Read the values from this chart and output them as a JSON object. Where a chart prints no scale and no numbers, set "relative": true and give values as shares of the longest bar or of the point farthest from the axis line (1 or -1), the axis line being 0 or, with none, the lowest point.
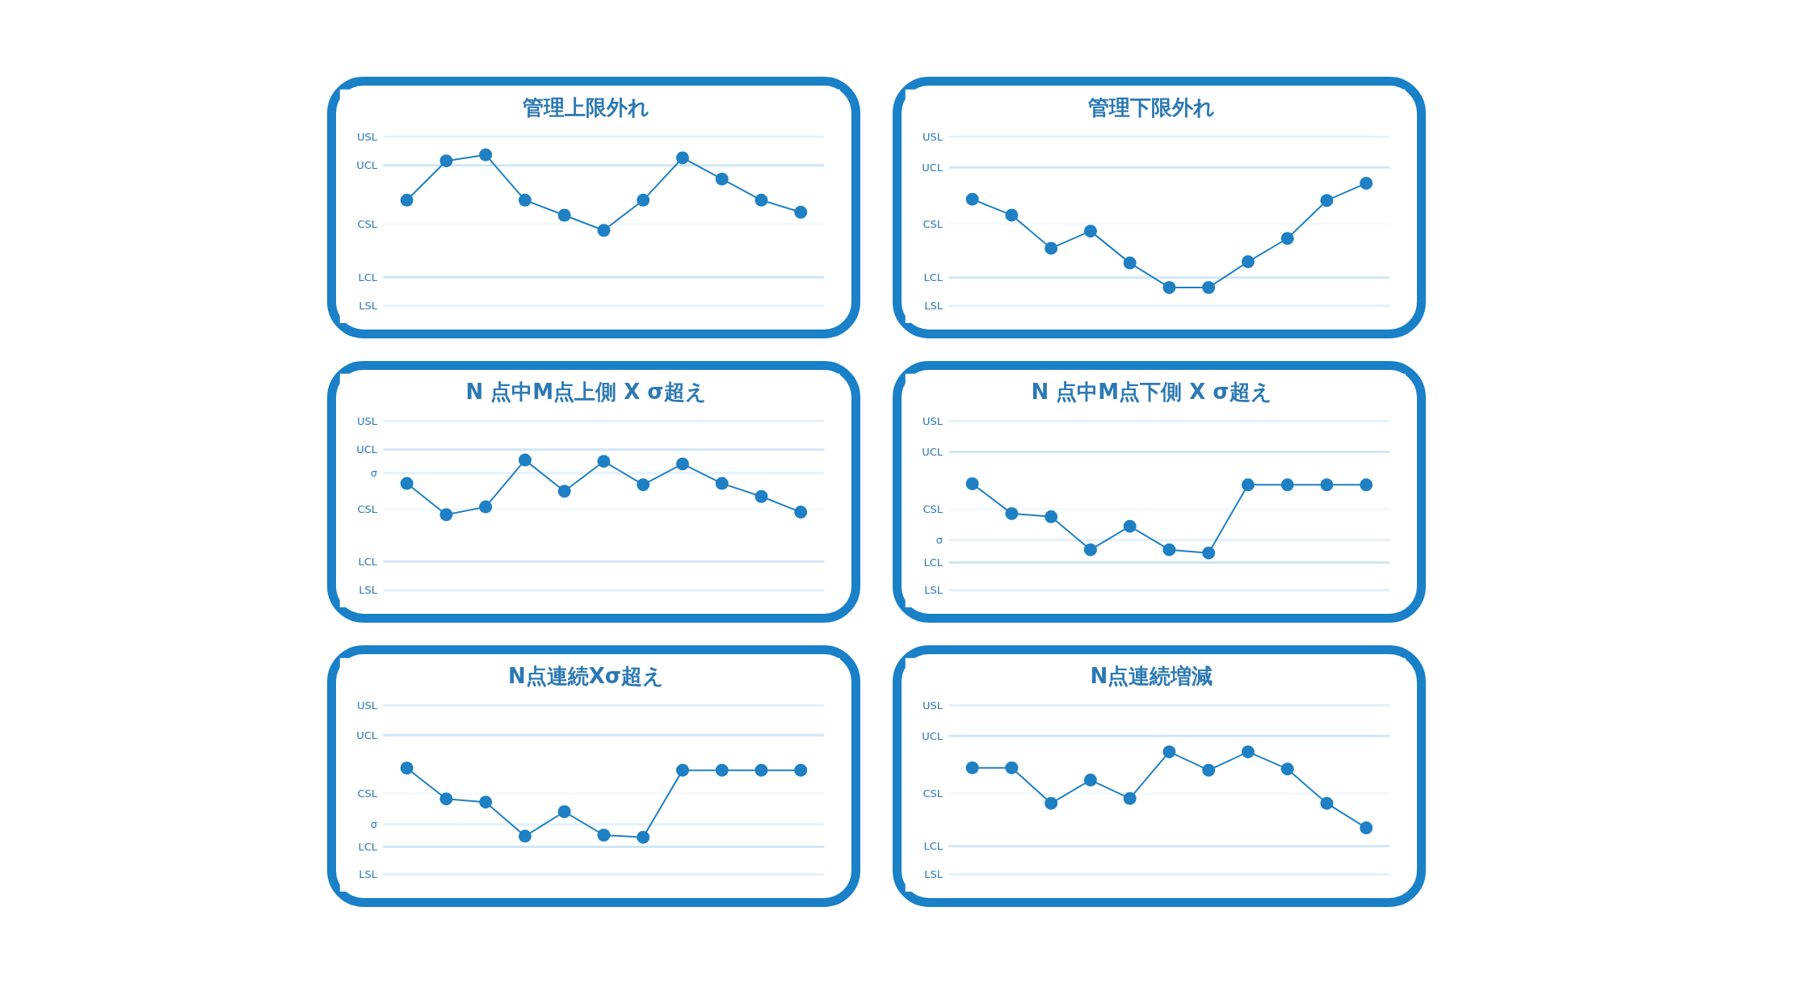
{
  "chart_data": [
    {
      "type": "line",
      "title": "管理上限外れ",
      "relative": true,
      "marker": "circle",
      "categories": [
        null,
        null,
        null,
        null,
        null,
        null,
        null,
        null,
        null,
        null,
        null
      ],
      "series": [
        {
          "color": "#1f80c3",
          "values": [
            0.7,
            0.96,
            1,
            0.7,
            0.6,
            0.5,
            0.7,
            0.98,
            0.84,
            0.7,
            0.62
          ]
        }
      ],
      "ref_lines": [
        {
          "axis": "y",
          "value": 1.12,
          "label": "USL",
          "color": "#e3f1fa"
        },
        {
          "axis": "y",
          "value": 0.93,
          "label": "UCL",
          "color": "#cfe6f5"
        },
        {
          "axis": "y",
          "value": 0.54,
          "label": "CSL",
          "color": "#f4f9fd"
        },
        {
          "axis": "y",
          "value": 0.19,
          "label": "LCL",
          "color": "#cfe6f5"
        },
        {
          "axis": "y",
          "value": 0,
          "label": "LSL",
          "color": "#e3f1fa"
        }
      ]
    },
    {
      "type": "line",
      "title": "管理下限外れ",
      "relative": true,
      "marker": "circle",
      "categories": [
        null,
        null,
        null,
        null,
        null,
        null,
        null,
        null,
        null,
        null,
        null
      ],
      "series": [
        {
          "color": "#1f80c3",
          "values": [
            0.87,
            0.74,
            0.47,
            0.61,
            0.35,
            0.15,
            0.15,
            0.36,
            0.55,
            0.86,
            1
          ]
        }
      ],
      "ref_lines": [
        {
          "axis": "y",
          "value": 1.38,
          "label": "USL",
          "color": "#e3f1fa"
        },
        {
          "axis": "y",
          "value": 1.13,
          "label": "UCL",
          "color": "#cfe6f5"
        },
        {
          "axis": "y",
          "value": 0.67,
          "label": "CSL",
          "color": "#f4f9fd"
        },
        {
          "axis": "y",
          "value": 0.23,
          "label": "LCL",
          "color": "#cfe6f5"
        },
        {
          "axis": "y",
          "value": 0,
          "label": "LSL",
          "color": "#e3f1fa"
        }
      ]
    },
    {
      "type": "line",
      "title": "N 点中M点上側 X σ超え",
      "relative": true,
      "marker": "circle",
      "categories": [
        null,
        null,
        null,
        null,
        null,
        null,
        null,
        null,
        null,
        null,
        null
      ],
      "series": [
        {
          "color": "#1f80c3",
          "values": [
            0.82,
            0.58,
            0.64,
            1,
            0.76,
            0.99,
            0.81,
            0.97,
            0.82,
            0.72,
            0.6
          ]
        }
      ],
      "ref_lines": [
        {
          "axis": "y",
          "value": 1.3,
          "label": "USL",
          "color": "#e3f1fa"
        },
        {
          "axis": "y",
          "value": 1.08,
          "label": "UCL",
          "color": "#cfe6f5"
        },
        {
          "axis": "y",
          "value": 0.9,
          "label": "σ",
          "color": "#e3f1fa"
        },
        {
          "axis": "y",
          "value": 0.62,
          "label": "CSL",
          "color": "#f4f9fd"
        },
        {
          "axis": "y",
          "value": 0.22,
          "label": "LCL",
          "color": "#cfe6f5"
        },
        {
          "axis": "y",
          "value": 0,
          "label": "LSL",
          "color": "#e3f1fa"
        }
      ]
    },
    {
      "type": "line",
      "title": "N 点中M点下側 X σ超え",
      "relative": true,
      "marker": "circle",
      "categories": [
        null,
        null,
        null,
        null,
        null,
        null,
        null,
        null,
        null,
        null,
        null
      ],
      "series": [
        {
          "color": "#1f80c3",
          "values": [
            1,
            0.72,
            0.69,
            0.38,
            0.6,
            0.38,
            0.35,
            0.99,
            0.99,
            0.99,
            0.99
          ]
        }
      ],
      "ref_lines": [
        {
          "axis": "y",
          "value": 1.59,
          "label": "USL",
          "color": "#e3f1fa"
        },
        {
          "axis": "y",
          "value": 1.3,
          "label": "UCL",
          "color": "#cfe6f5"
        },
        {
          "axis": "y",
          "value": 0.76,
          "label": "CSL",
          "color": "#f4f9fd"
        },
        {
          "axis": "y",
          "value": 0.47,
          "label": "σ",
          "color": "#e3f1fa"
        },
        {
          "axis": "y",
          "value": 0.26,
          "label": "LCL",
          "color": "#cfe6f5"
        },
        {
          "axis": "y",
          "value": 0,
          "label": "LSL",
          "color": "#e3f1fa"
        }
      ]
    },
    {
      "type": "line",
      "title": "N点連続Xσ超え",
      "relative": true,
      "marker": "circle",
      "categories": [
        null,
        null,
        null,
        null,
        null,
        null,
        null,
        null,
        null,
        null,
        null
      ],
      "series": [
        {
          "color": "#1f80c3",
          "values": [
            1,
            0.71,
            0.68,
            0.36,
            0.59,
            0.37,
            0.35,
            0.98,
            0.98,
            0.98,
            0.98
          ]
        }
      ],
      "ref_lines": [
        {
          "axis": "y",
          "value": 1.59,
          "label": "USL",
          "color": "#e3f1fa"
        },
        {
          "axis": "y",
          "value": 1.31,
          "label": "UCL",
          "color": "#cfe6f5"
        },
        {
          "axis": "y",
          "value": 0.76,
          "label": "CSL",
          "color": "#f4f9fd"
        },
        {
          "axis": "y",
          "value": 0.47,
          "label": "σ",
          "color": "#e3f1fa"
        },
        {
          "axis": "y",
          "value": 0.26,
          "label": "LCL",
          "color": "#cfe6f5"
        },
        {
          "axis": "y",
          "value": 0,
          "label": "LSL",
          "color": "#e3f1fa"
        }
      ]
    },
    {
      "type": "line",
      "title": "N点連続増減",
      "relative": true,
      "marker": "circle",
      "categories": [
        null,
        null,
        null,
        null,
        null,
        null,
        null,
        null,
        null,
        null,
        null
      ],
      "series": [
        {
          "color": "#1f80c3",
          "values": [
            0.87,
            0.87,
            0.58,
            0.77,
            0.62,
            1,
            0.85,
            1,
            0.86,
            0.58,
            0.38
          ]
        }
      ],
      "ref_lines": [
        {
          "axis": "y",
          "value": 1.38,
          "label": "USL",
          "color": "#e3f1fa"
        },
        {
          "axis": "y",
          "value": 1.13,
          "label": "UCL",
          "color": "#cfe6f5"
        },
        {
          "axis": "y",
          "value": 0.66,
          "label": "CSL",
          "color": "#f4f9fd"
        },
        {
          "axis": "y",
          "value": 0.23,
          "label": "LCL",
          "color": "#cfe6f5"
        },
        {
          "axis": "y",
          "value": 0,
          "label": "LSL",
          "color": "#e3f1fa"
        }
      ]
    }
  ]
}
